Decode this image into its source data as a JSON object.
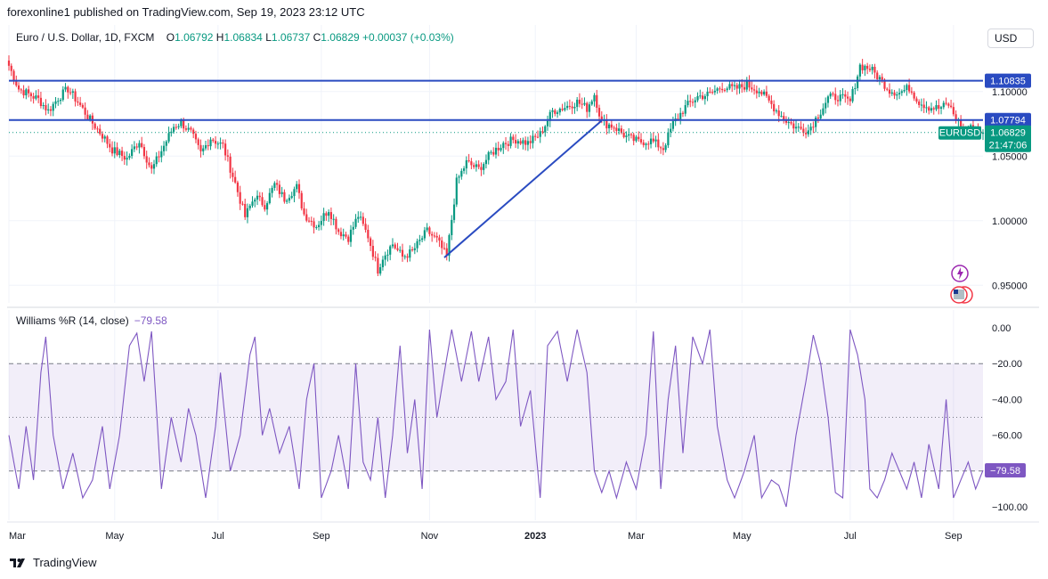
{
  "header": {
    "publish_text": "forexonline1 published on TradingView.com, Sep 19, 2023 23:12 UTC"
  },
  "symbol": {
    "name": "Euro / U.S. Dollar, 1D, FXCM",
    "open_label": "O",
    "open": "1.06792",
    "high_label": "H",
    "high": "1.06834",
    "low_label": "L",
    "low": "1.06737",
    "close_label": "C",
    "close": "1.06829",
    "change": "+0.00037 (+0.03%)"
  },
  "currency_button": "USD",
  "indicator": {
    "title": "Williams %R (14, close)",
    "value": "−79.58"
  },
  "footer": {
    "brand": "TradingView"
  },
  "colors": {
    "up": "#089981",
    "down": "#f23645",
    "line": "#2a4bc1",
    "wr": "#7e57c2",
    "band": "#7e57c2",
    "axis_text": "#131722"
  },
  "chart_data": [
    {
      "type": "candlestick",
      "symbol_label": "EURUSD",
      "y_tick_labels": [
        "1.10000",
        "1.05000",
        "1.00000",
        "0.95000"
      ],
      "y_ticks": [
        1.1,
        1.05,
        1.0,
        0.95
      ],
      "ylim": [
        0.935,
        1.135
      ],
      "x_tick_labels": [
        "Mar",
        "May",
        "Jul",
        "Sep",
        "Nov",
        "2023",
        "Mar",
        "May",
        "Jul",
        "Sep"
      ],
      "x_ticks_index": [
        0,
        43,
        85,
        127,
        171,
        214,
        255,
        298,
        342,
        384
      ],
      "horizontal_lines": [
        {
          "value": 1.10835,
          "label": "1.10835"
        },
        {
          "value": 1.07794,
          "label": "1.07794"
        }
      ],
      "last_price": {
        "value": 1.06829,
        "label": "1.06829",
        "countdown": "21:47:06"
      },
      "trendline": {
        "from": {
          "index": 177,
          "value": 0.9715
        },
        "to": {
          "index": 241,
          "value": 1.0775
        }
      },
      "close_anchors": [
        [
          0,
          1.12
        ],
        [
          4,
          1.102
        ],
        [
          8,
          1.098
        ],
        [
          12,
          1.094
        ],
        [
          16,
          1.085
        ],
        [
          20,
          1.095
        ],
        [
          24,
          1.102
        ],
        [
          28,
          1.092
        ],
        [
          33,
          1.078
        ],
        [
          38,
          1.066
        ],
        [
          42,
          1.055
        ],
        [
          48,
          1.048
        ],
        [
          53,
          1.062
        ],
        [
          58,
          1.039
        ],
        [
          63,
          1.058
        ],
        [
          67,
          1.073
        ],
        [
          70,
          1.076
        ],
        [
          74,
          1.068
        ],
        [
          78,
          1.052
        ],
        [
          82,
          1.064
        ],
        [
          87,
          1.058
        ],
        [
          92,
          1.029
        ],
        [
          96,
          1.003
        ],
        [
          100,
          1.019
        ],
        [
          104,
          1.012
        ],
        [
          108,
          1.028
        ],
        [
          112,
          1.017
        ],
        [
          117,
          1.026
        ],
        [
          120,
          1.005
        ],
        [
          125,
          0.996
        ],
        [
          130,
          1.009
        ],
        [
          134,
          0.992
        ],
        [
          138,
          0.987
        ],
        [
          142,
          1.004
        ],
        [
          146,
          0.988
        ],
        [
          150,
          0.962
        ],
        [
          152,
          0.972
        ],
        [
          156,
          0.982
        ],
        [
          160,
          0.972
        ],
        [
          164,
          0.976
        ],
        [
          170,
          0.992
        ],
        [
          174,
          0.985
        ],
        [
          178,
          0.972
        ],
        [
          182,
          1.03
        ],
        [
          186,
          1.045
        ],
        [
          191,
          1.04
        ],
        [
          196,
          1.052
        ],
        [
          201,
          1.06
        ],
        [
          206,
          1.063
        ],
        [
          211,
          1.06
        ],
        [
          216,
          1.067
        ],
        [
          221,
          1.085
        ],
        [
          226,
          1.088
        ],
        [
          231,
          1.092
        ],
        [
          235,
          1.087
        ],
        [
          238,
          1.098
        ],
        [
          241,
          1.076
        ],
        [
          246,
          1.073
        ],
        [
          251,
          1.065
        ],
        [
          256,
          1.061
        ],
        [
          261,
          1.062
        ],
        [
          266,
          1.056
        ],
        [
          270,
          1.075
        ],
        [
          275,
          1.088
        ],
        [
          280,
          1.096
        ],
        [
          285,
          1.098
        ],
        [
          290,
          1.104
        ],
        [
          295,
          1.102
        ],
        [
          300,
          1.105
        ],
        [
          305,
          1.101
        ],
        [
          310,
          1.09
        ],
        [
          315,
          1.079
        ],
        [
          320,
          1.072
        ],
        [
          325,
          1.07
        ],
        [
          330,
          1.085
        ],
        [
          333,
          1.095
        ],
        [
          337,
          1.096
        ],
        [
          342,
          1.092
        ],
        [
          346,
          1.12
        ],
        [
          350,
          1.118
        ],
        [
          354,
          1.11
        ],
        [
          358,
          1.101
        ],
        [
          362,
          1.099
        ],
        [
          366,
          1.103
        ],
        [
          370,
          1.092
        ],
        [
          374,
          1.088
        ],
        [
          378,
          1.087
        ],
        [
          382,
          1.09
        ],
        [
          385,
          1.079
        ],
        [
          388,
          1.07
        ],
        [
          392,
          1.072
        ],
        [
          396,
          1.0683
        ]
      ]
    },
    {
      "type": "line",
      "name": "Williams %R (14, close)",
      "y_tick_labels": [
        "0.00",
        "−20.00",
        "−40.00",
        "−60.00",
        "−100.00"
      ],
      "y_ticks": [
        0,
        -20,
        -40,
        -60,
        -100
      ],
      "ylim": [
        -101,
        2
      ],
      "levels": [
        -20,
        -50,
        -80
      ],
      "band": [
        -80,
        -20
      ],
      "last": {
        "value": -79.58,
        "label": "−79.58"
      },
      "anchors": [
        [
          0,
          -60
        ],
        [
          4,
          -90
        ],
        [
          7,
          -55
        ],
        [
          10,
          -85
        ],
        [
          13,
          -25
        ],
        [
          15,
          -5
        ],
        [
          18,
          -60
        ],
        [
          22,
          -90
        ],
        [
          26,
          -70
        ],
        [
          30,
          -95
        ],
        [
          34,
          -85
        ],
        [
          38,
          -55
        ],
        [
          41,
          -90
        ],
        [
          45,
          -60
        ],
        [
          49,
          -10
        ],
        [
          52,
          -3
        ],
        [
          55,
          -30
        ],
        [
          58,
          -2
        ],
        [
          62,
          -90
        ],
        [
          66,
          -50
        ],
        [
          70,
          -75
        ],
        [
          73,
          -45
        ],
        [
          76,
          -60
        ],
        [
          80,
          -95
        ],
        [
          84,
          -55
        ],
        [
          86,
          -25
        ],
        [
          90,
          -80
        ],
        [
          94,
          -60
        ],
        [
          98,
          -15
        ],
        [
          100,
          -5
        ],
        [
          103,
          -60
        ],
        [
          106,
          -45
        ],
        [
          110,
          -70
        ],
        [
          114,
          -55
        ],
        [
          118,
          -90
        ],
        [
          121,
          -40
        ],
        [
          124,
          -20
        ],
        [
          127,
          -95
        ],
        [
          131,
          -80
        ],
        [
          134,
          -60
        ],
        [
          138,
          -90
        ],
        [
          141,
          -20
        ],
        [
          144,
          -75
        ],
        [
          147,
          -85
        ],
        [
          150,
          -50
        ],
        [
          153,
          -95
        ],
        [
          156,
          -60
        ],
        [
          159,
          -10
        ],
        [
          162,
          -70
        ],
        [
          165,
          -40
        ],
        [
          168,
          -90
        ],
        [
          171,
          -1
        ],
        [
          174,
          -50
        ],
        [
          177,
          -25
        ],
        [
          180,
          -1
        ],
        [
          184,
          -30
        ],
        [
          188,
          -2
        ],
        [
          191,
          -30
        ],
        [
          195,
          -5
        ],
        [
          198,
          -40
        ],
        [
          202,
          -30
        ],
        [
          205,
          -1
        ],
        [
          208,
          -55
        ],
        [
          212,
          -35
        ],
        [
          216,
          -95
        ],
        [
          219,
          -10
        ],
        [
          223,
          -2
        ],
        [
          227,
          -30
        ],
        [
          231,
          -1
        ],
        [
          235,
          -25
        ],
        [
          238,
          -80
        ],
        [
          241,
          -92
        ],
        [
          244,
          -80
        ],
        [
          247,
          -95
        ],
        [
          251,
          -75
        ],
        [
          255,
          -90
        ],
        [
          259,
          -60
        ],
        [
          262,
          -2
        ],
        [
          265,
          -90
        ],
        [
          268,
          -40
        ],
        [
          271,
          -10
        ],
        [
          274,
          -70
        ],
        [
          278,
          -5
        ],
        [
          282,
          -20
        ],
        [
          285,
          -1
        ],
        [
          288,
          -55
        ],
        [
          292,
          -85
        ],
        [
          295,
          -95
        ],
        [
          299,
          -80
        ],
        [
          303,
          -60
        ],
        [
          306,
          -95
        ],
        [
          310,
          -85
        ],
        [
          313,
          -88
        ],
        [
          316,
          -100
        ],
        [
          320,
          -60
        ],
        [
          324,
          -30
        ],
        [
          327,
          -4
        ],
        [
          330,
          -20
        ],
        [
          333,
          -50
        ],
        [
          336,
          -92
        ],
        [
          339,
          -95
        ],
        [
          342,
          -1
        ],
        [
          345,
          -15
        ],
        [
          348,
          -40
        ],
        [
          350,
          -90
        ],
        [
          353,
          -95
        ],
        [
          356,
          -85
        ],
        [
          359,
          -70
        ],
        [
          362,
          -80
        ],
        [
          365,
          -90
        ],
        [
          368,
          -75
        ],
        [
          371,
          -95
        ],
        [
          374,
          -65
        ],
        [
          378,
          -90
        ],
        [
          381,
          -40
        ],
        [
          384,
          -95
        ],
        [
          387,
          -85
        ],
        [
          390,
          -75
        ],
        [
          393,
          -90
        ],
        [
          396,
          -79.58
        ]
      ]
    }
  ]
}
